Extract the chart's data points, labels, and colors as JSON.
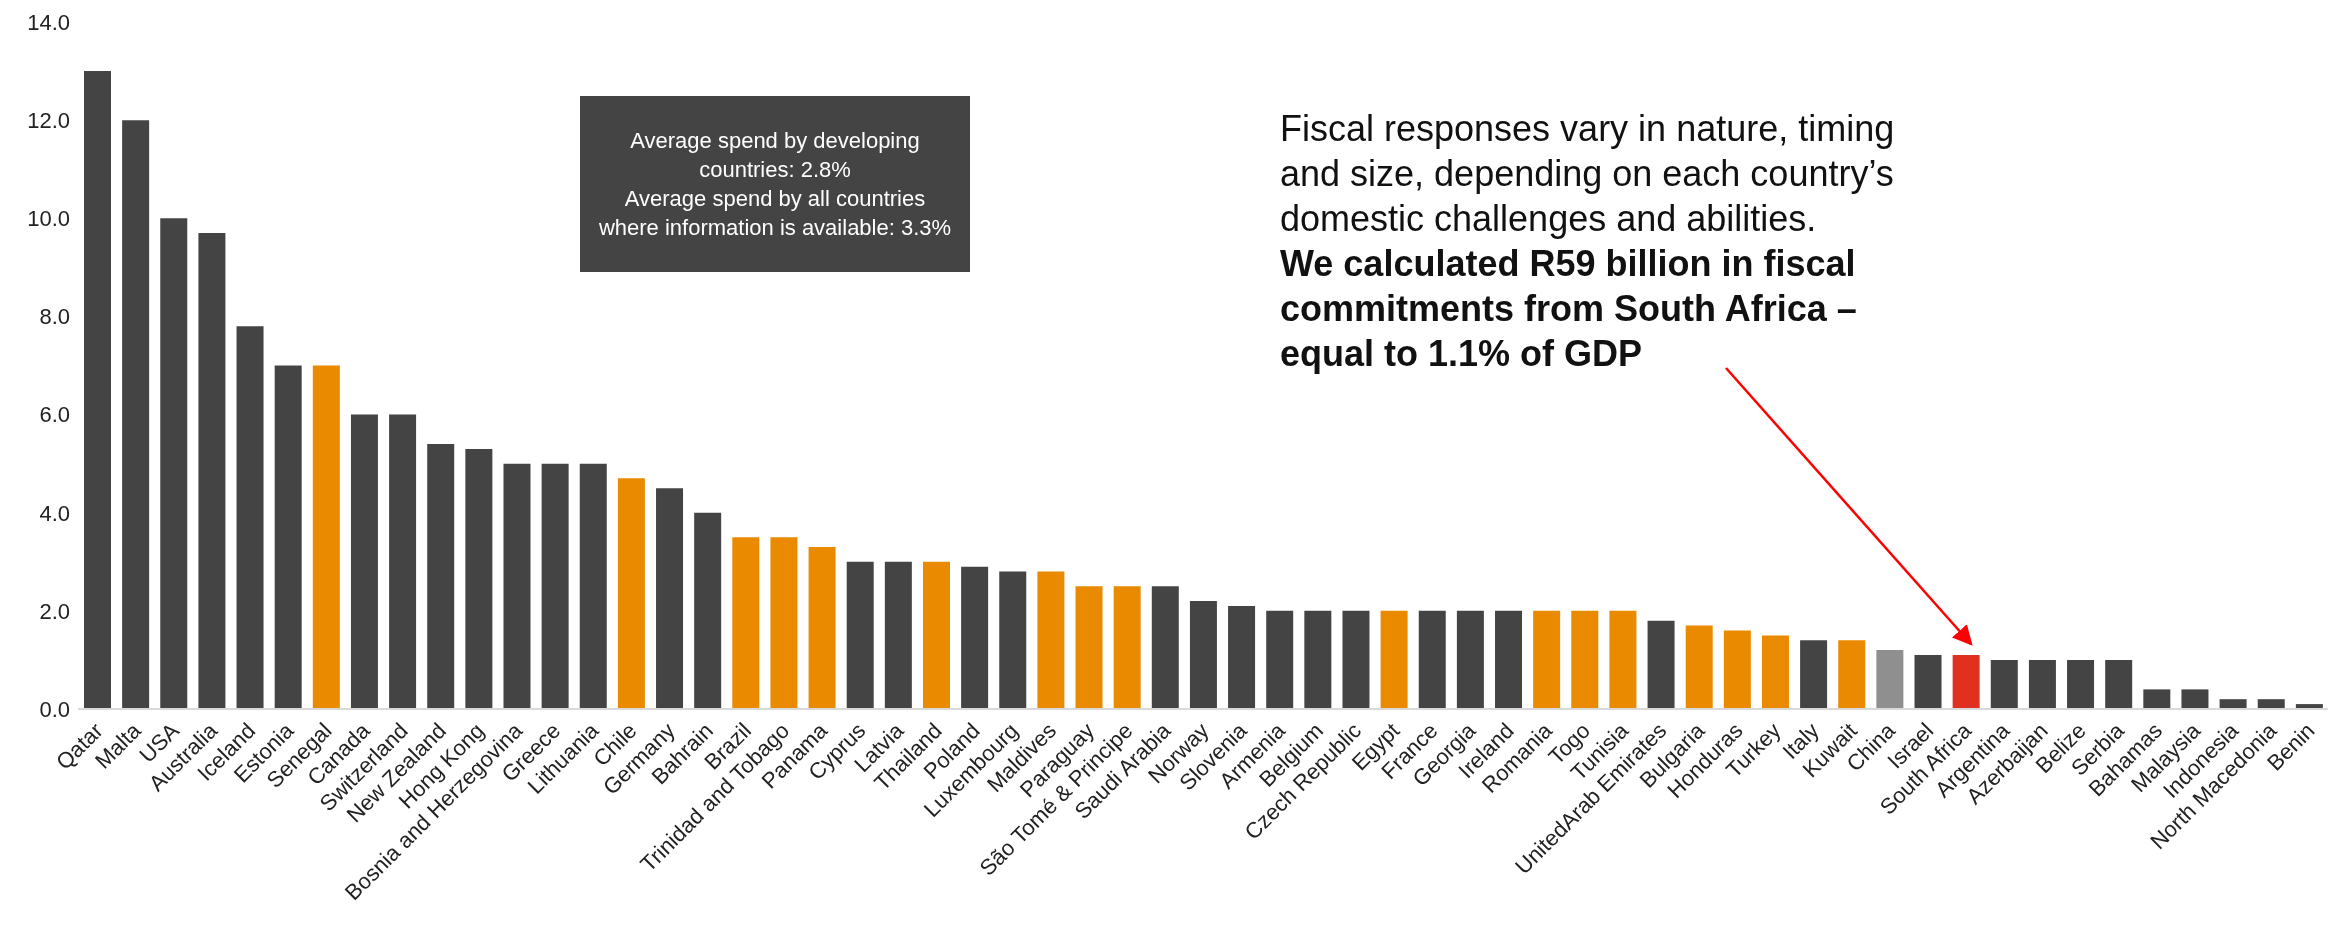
{
  "chart_data": {
    "type": "bar",
    "categories": [
      "Qatar",
      "Malta",
      "USA",
      "Australia",
      "Iceland",
      "Estonia",
      "Senegal",
      "Canada",
      "Switzerland",
      "New Zealand",
      "Hong Kong",
      "Bosnia and Herzegovina",
      "Greece",
      "Lithuania",
      "Chile",
      "Germany",
      "Bahrain",
      "Brazil",
      "Trinidad and Tobago",
      "Panama",
      "Cyprus",
      "Latvia",
      "Thailand",
      "Poland",
      "Luxembourg",
      "Maldives",
      "Paraguay",
      "São Tomé & Principe",
      "Saudi Arabia",
      "Norway",
      "Slovenia",
      "Armenia",
      "Belgium",
      "Czech Republic",
      "Egypt",
      "France",
      "Georgia",
      "Ireland",
      "Romania",
      "Togo",
      "Tunisia",
      "UnitedArab Emirates",
      "Bulgaria",
      "Honduras",
      "Turkey",
      "Italy",
      "Kuwait",
      "China",
      "Israel",
      "South Africa",
      "Argentina",
      "Azerbaijan",
      "Belize",
      "Serbia",
      "Bahamas",
      "Malaysia",
      "Indonesia",
      "North Macedonia",
      "Benin"
    ],
    "values": [
      13,
      12,
      10,
      9.7,
      7.8,
      7,
      7,
      6,
      6,
      5.4,
      5.3,
      5,
      5,
      5,
      4.7,
      4.5,
      4,
      3.5,
      3.5,
      3.3,
      3,
      3,
      3,
      2.9,
      2.8,
      2.8,
      2.5,
      2.5,
      2.5,
      2.2,
      2.1,
      2,
      2,
      2,
      2,
      2,
      2,
      2,
      2,
      2,
      2,
      1.8,
      1.7,
      1.6,
      1.5,
      1.4,
      1.4,
      1.2,
      1.1,
      1.1,
      1,
      1,
      1,
      1,
      0.4,
      0.4,
      0.2,
      0.2,
      0.1
    ],
    "colors": [
      "#444444",
      "#444444",
      "#444444",
      "#444444",
      "#444444",
      "#444444",
      "#e98a00",
      "#444444",
      "#444444",
      "#444444",
      "#444444",
      "#444444",
      "#444444",
      "#444444",
      "#e98a00",
      "#444444",
      "#444444",
      "#e98a00",
      "#e98a00",
      "#e98a00",
      "#444444",
      "#444444",
      "#e98a00",
      "#444444",
      "#444444",
      "#e98a00",
      "#e98a00",
      "#e98a00",
      "#444444",
      "#444444",
      "#444444",
      "#444444",
      "#444444",
      "#444444",
      "#e98a00",
      "#444444",
      "#444444",
      "#444444",
      "#e98a00",
      "#e98a00",
      "#e98a00",
      "#444444",
      "#e98a00",
      "#e98a00",
      "#e98a00",
      "#444444",
      "#e98a00",
      "#8f8f8f",
      "#444444",
      "#e03020",
      "#444444",
      "#444444",
      "#444444",
      "#444444",
      "#444444",
      "#444444",
      "#444444",
      "#444444",
      "#444444"
    ],
    "ylim": [
      0,
      14
    ],
    "yticks": [
      {
        "value": 0,
        "label": "0.0"
      },
      {
        "value": 2,
        "label": "2.0"
      },
      {
        "value": 4,
        "label": "4.0"
      },
      {
        "value": 6,
        "label": "6.0"
      },
      {
        "value": 8,
        "label": "8.0"
      },
      {
        "value": 10,
        "label": "10.0"
      },
      {
        "value": 12,
        "label": "12.0"
      },
      {
        "value": 14,
        "label": "14.0"
      }
    ],
    "grid": false,
    "legend": false,
    "annotations": [
      "Average spend by developing countries: 2.8%",
      "Average spend by all countries where information is available: 3.3%",
      "Fiscal responses vary in nature, timing and size, depending on each country’s domestic challenges and abilities.",
      "We calculated R59 billion in fiscal commitments from South Africa – equal to 1.1% of GDP"
    ]
  }
}
